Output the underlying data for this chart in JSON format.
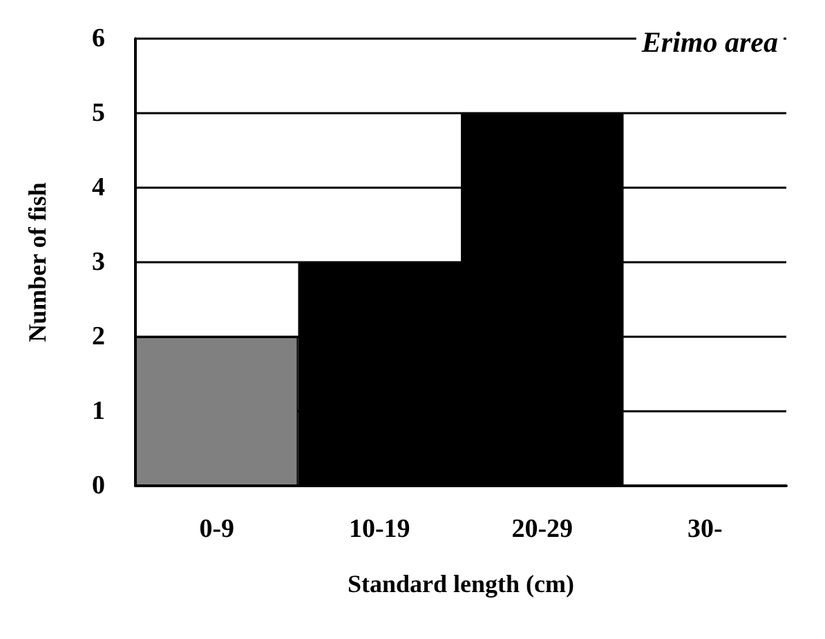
{
  "chart_data": {
    "type": "bar",
    "title": "Erimo area",
    "xlabel": "Standard length (cm)",
    "ylabel": "Number of fish",
    "categories": [
      "0-9",
      "10-19",
      "20-29",
      "30-"
    ],
    "values": [
      2,
      3,
      5,
      0
    ],
    "colors": [
      "#808080",
      "#000000",
      "#000000",
      "#000000"
    ],
    "ylim": [
      0,
      6
    ],
    "yticks": [
      0,
      1,
      2,
      3,
      4,
      5,
      6
    ],
    "grid": "y"
  }
}
